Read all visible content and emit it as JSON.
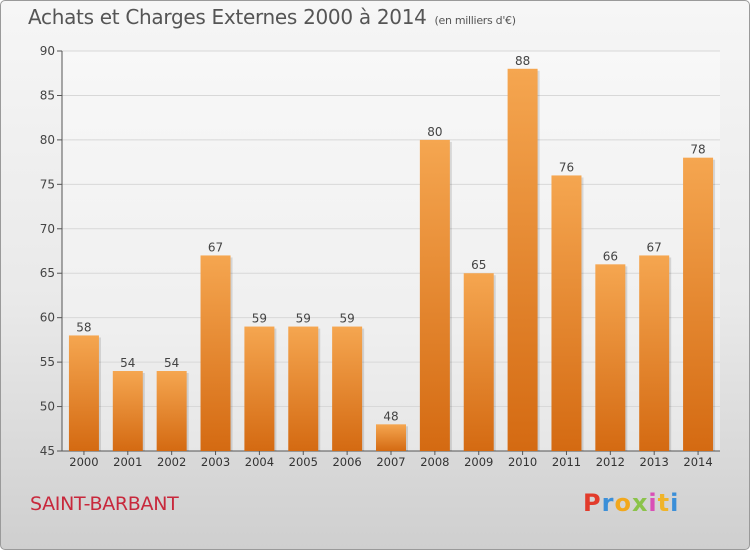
{
  "header": {
    "title": "Achats et Charges Externes 2000 à 2014",
    "subtitle": "(en milliers d'€)"
  },
  "footer": {
    "place": "SAINT-BARBANT",
    "logo_letters": [
      "P",
      "r",
      "o",
      "x",
      "i",
      "t",
      "i"
    ],
    "logo_colors": [
      "#e23b2b",
      "#3b8fd8",
      "#f2a81d",
      "#8bc34a",
      "#d94fb6",
      "#f0b429",
      "#3b8fd8"
    ]
  },
  "chart_data": {
    "type": "bar",
    "title": "Achats et Charges Externes 2000 à 2014",
    "subtitle": "(en milliers d'€)",
    "categories": [
      "2000",
      "2001",
      "2002",
      "2003",
      "2004",
      "2005",
      "2006",
      "2007",
      "2008",
      "2009",
      "2010",
      "2011",
      "2012",
      "2013",
      "2014"
    ],
    "values": [
      58,
      54,
      54,
      67,
      59,
      59,
      59,
      48,
      80,
      65,
      88,
      76,
      66,
      67,
      78
    ],
    "ylim": [
      45,
      90
    ],
    "yticks": [
      45,
      50,
      55,
      60,
      65,
      70,
      75,
      80,
      85,
      90
    ],
    "grid": true,
    "colors": {
      "bar_light": "#f5a650",
      "bar_dark": "#d46a12",
      "grid": "#d8d8d8",
      "axis": "#555555"
    }
  }
}
